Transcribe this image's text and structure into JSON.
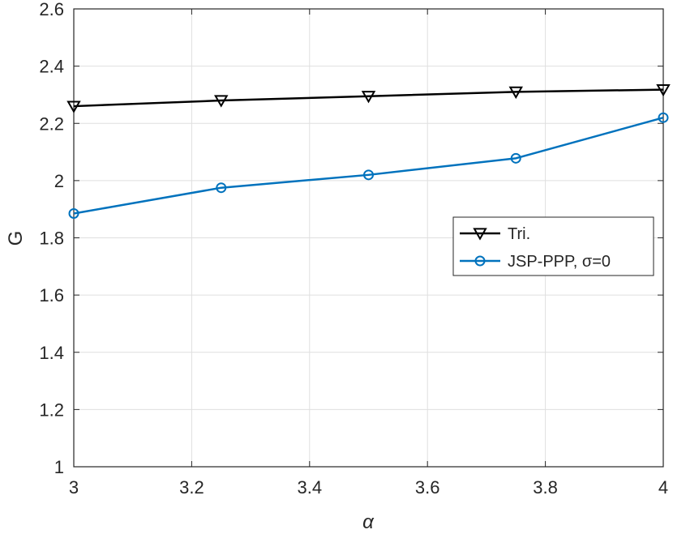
{
  "chart_data": {
    "type": "line",
    "title": "",
    "xlabel": "α",
    "ylabel": "G",
    "xlim": [
      3,
      4
    ],
    "ylim": [
      1,
      2.6
    ],
    "grid": true,
    "legend_position": "center-right",
    "x": [
      3,
      3.25,
      3.5,
      3.75,
      4
    ],
    "x_ticks": [
      "3",
      "3.2",
      "3.4",
      "3.6",
      "3.8",
      "4"
    ],
    "y_ticks": [
      "1",
      "1.2",
      "1.4",
      "1.6",
      "1.8",
      "2",
      "2.2",
      "2.4",
      "2.6"
    ],
    "series": [
      {
        "name": "Tri.",
        "color": "#000000",
        "marker": "triangle-down",
        "values": [
          2.26,
          2.28,
          2.295,
          2.31,
          2.318
        ]
      },
      {
        "name": "JSP-PPP, σ=0",
        "color": "#0072BD",
        "marker": "circle",
        "values": [
          1.885,
          1.975,
          2.02,
          2.078,
          2.22
        ]
      }
    ]
  }
}
